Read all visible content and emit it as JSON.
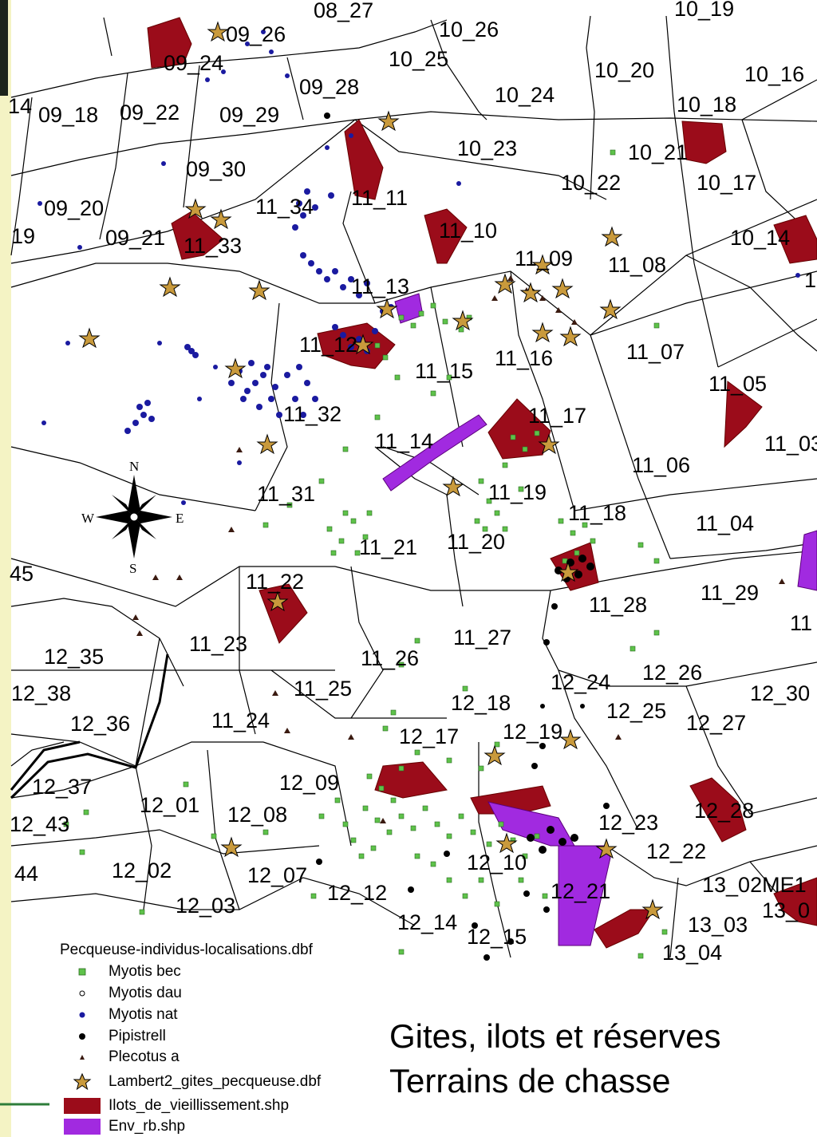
{
  "title": {
    "line1": "Gites, ilots et réserves",
    "line2": "Terrains de chasse"
  },
  "compass": {
    "n": "N",
    "s": "S",
    "e": "E",
    "w": "W"
  },
  "legend": {
    "title": "Pecqueuse-individus-localisations.dbf",
    "items": [
      {
        "symbol": "green-square",
        "label": "Myotis bec",
        "color": "#5ec24a"
      },
      {
        "symbol": "hollow-circle",
        "label": "Myotis dau",
        "color": "#000000"
      },
      {
        "symbol": "blue-dot",
        "label": "Myotis nat",
        "color": "#1a1aa0"
      },
      {
        "symbol": "black-dot",
        "label": "Pipistrell",
        "color": "#000000"
      },
      {
        "symbol": "triangle",
        "label": "Plecotus a",
        "color": "#3a1a10"
      },
      {
        "symbol": "star",
        "label": "Lambert2_gites_pecqueuse.dbf",
        "color": "#8b5a2b"
      },
      {
        "symbol": "red-polygon",
        "label": "Ilots_de_vieillissement.shp",
        "color": "#9b0c1a"
      },
      {
        "symbol": "purple-polygon",
        "label": "Env_rb.shp",
        "color": "#a12ae0"
      }
    ]
  },
  "parcels": [
    "09_26",
    "08_27",
    "10_26",
    "10_19",
    "09_24",
    "10_25",
    "10_20",
    "10_16",
    "09_28",
    "10_24",
    "10_18",
    "09_18",
    "09_22",
    "09_29",
    "10_23",
    "10_21",
    "09_30",
    "11_11",
    "10_22",
    "10_17",
    "09_20",
    "11_34",
    "09_21",
    "11_33",
    "11_10",
    "10_14",
    "11_09",
    "11_08",
    "11_13",
    "11_12",
    "11_15",
    "11_16",
    "11_07",
    "11_05",
    "11_32",
    "11_17",
    "11_14",
    "11_06",
    "11_31",
    "11_19",
    "11_18",
    "11_04",
    "11_21",
    "11_20",
    "11_22",
    "11_28",
    "11_29",
    "12_35",
    "11_23",
    "11_27",
    "11_26",
    "12_24",
    "12_26",
    "12_38",
    "11_25",
    "12_18",
    "12_25",
    "12_30",
    "12_36",
    "11_24",
    "12_17",
    "12_19",
    "12_27",
    "12_37",
    "12_09",
    "12_01",
    "12_08",
    "12_43",
    "12_23",
    "12_28",
    "12_22",
    "12_02",
    "12_07",
    "12_12",
    "12_10",
    "12_03",
    "12_21",
    "13_02ME1",
    "12_14",
    "12_15",
    "13_03",
    "13_04",
    "14",
    "19",
    "45",
    "44",
    "11_03",
    "11",
    "1",
    "13_0"
  ]
}
